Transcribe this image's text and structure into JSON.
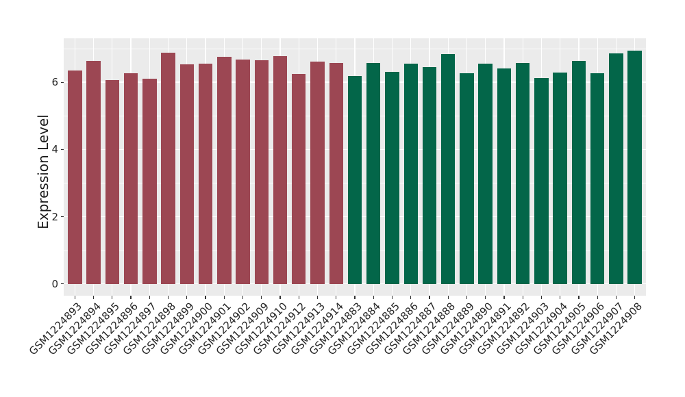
{
  "figure": {
    "background": "#ffffff",
    "panel_bg": "#ebebeb",
    "grid_color": "#ffffff",
    "tick_color": "#333333",
    "tick_label_color": "#262626"
  },
  "chart_data": {
    "type": "bar",
    "title": "",
    "xlabel": "",
    "ylabel": "Expression Level",
    "yticks": [
      0,
      2,
      4,
      6
    ],
    "y_minor_ticks": [
      1,
      3,
      5,
      7
    ],
    "ylim": [
      -0.35,
      7.31
    ],
    "grid": "white major and minor horizontal lines, white vertical line at each category, on gray panel",
    "legend_position": "none",
    "bar_width_fraction": 0.75,
    "series": [
      {
        "name": "maroon-group",
        "color": "#9c4753",
        "categories": [
          "GSM1224893",
          "GSM1224894",
          "GSM1224895",
          "GSM1224896",
          "GSM1224897",
          "GSM1224898",
          "GSM1224899",
          "GSM1224900",
          "GSM1224901",
          "GSM1224902",
          "GSM1224909",
          "GSM1224910",
          "GSM1224912",
          "GSM1224913",
          "GSM1224914"
        ],
        "values": [
          6.34,
          6.63,
          6.06,
          6.27,
          6.1,
          6.88,
          6.53,
          6.55,
          6.75,
          6.68,
          6.66,
          6.78,
          6.25,
          6.62,
          6.57
        ]
      },
      {
        "name": "green-group",
        "color": "#036649",
        "categories": [
          "GSM1224883",
          "GSM1224884",
          "GSM1224885",
          "GSM1224886",
          "GSM1224887",
          "GSM1224888",
          "GSM1224889",
          "GSM1224890",
          "GSM1224891",
          "GSM1224892",
          "GSM1224903",
          "GSM1224904",
          "GSM1224905",
          "GSM1224906",
          "GSM1224907",
          "GSM1224908"
        ],
        "values": [
          6.18,
          6.57,
          6.31,
          6.55,
          6.46,
          6.83,
          6.26,
          6.56,
          6.41,
          6.58,
          6.12,
          6.29,
          6.63,
          6.26,
          6.85,
          6.94
        ]
      }
    ]
  }
}
